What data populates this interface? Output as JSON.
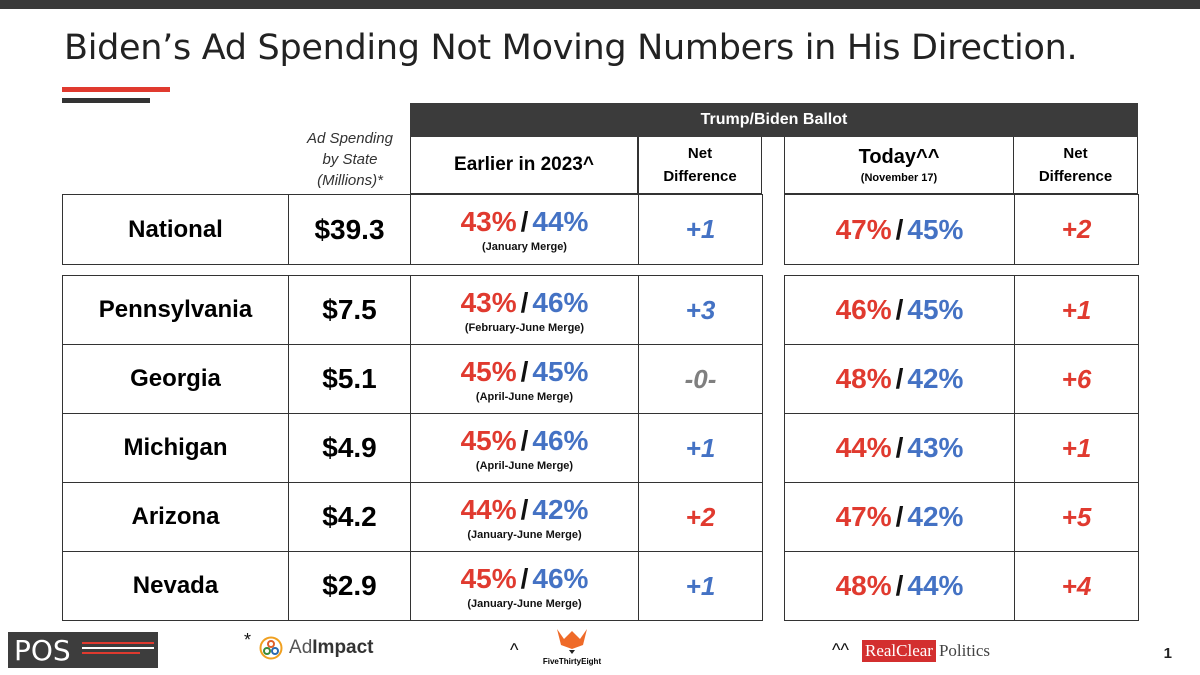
{
  "title": "Biden’s Ad Spending Not Moving Numbers in His Direction.",
  "header": {
    "ballot": "Trump/Biden  Ballot",
    "ad_spending": [
      "Ad Spending",
      "by State",
      "(Millions)*"
    ],
    "earlier": "Earlier in 2023^",
    "net_line1": "Net",
    "net_line2": "Difference",
    "today": "Today^^",
    "today_date": "(November 17)"
  },
  "national": {
    "state": "National",
    "spend": "$39.3",
    "earlier_trump": "43%",
    "earlier_biden": "44%",
    "earlier_source": "(January Merge)",
    "earlier_net": "+1",
    "today_trump": "47%",
    "today_biden": "45%",
    "today_net": "+2"
  },
  "rows": [
    {
      "state": "Pennsylvania",
      "spend": "$7.5",
      "earlier_trump": "43%",
      "earlier_biden": "46%",
      "earlier_source": "(February-June Merge)",
      "earlier_net": "+3",
      "today_trump": "46%",
      "today_biden": "45%",
      "today_net": "+1"
    },
    {
      "state": "Georgia",
      "spend": "$5.1",
      "earlier_trump": "45%",
      "earlier_biden": "45%",
      "earlier_source": "(April-June Merge)",
      "earlier_net": "-0-",
      "today_trump": "48%",
      "today_biden": "42%",
      "today_net": "+6"
    },
    {
      "state": "Michigan",
      "spend": "$4.9",
      "earlier_trump": "45%",
      "earlier_biden": "46%",
      "earlier_source": "(April-June Merge)",
      "earlier_net": "+1",
      "today_trump": "44%",
      "today_biden": "43%",
      "today_net": "+1"
    },
    {
      "state": "Arizona",
      "spend": "$4.2",
      "earlier_trump": "44%",
      "earlier_biden": "42%",
      "earlier_source": "(January-June Merge)",
      "earlier_net": "+2",
      "today_trump": "47%",
      "today_biden": "42%",
      "today_net": "+5"
    },
    {
      "state": "Nevada",
      "spend": "$2.9",
      "earlier_trump": "45%",
      "earlier_biden": "46%",
      "earlier_source": "(January-June Merge)",
      "earlier_net": "+1",
      "today_trump": "48%",
      "today_biden": "44%",
      "today_net": "+4"
    }
  ],
  "footer": {
    "pos_logo": "POS",
    "adimpact_mark": "*",
    "adimpact_ad": "Ad",
    "adimpact_impact": "Impact",
    "fte_mark": "^",
    "fte_label": "FiveThirtyEight",
    "rcp_mark": "^^",
    "rcp_realclear": "RealClear",
    "rcp_politics": "Politics",
    "page_number": "1"
  },
  "colors": {
    "trump": "#e03a2f",
    "biden": "#4472c4",
    "neutral": "#7f7f7f",
    "header_bg": "#3b3b3b"
  }
}
